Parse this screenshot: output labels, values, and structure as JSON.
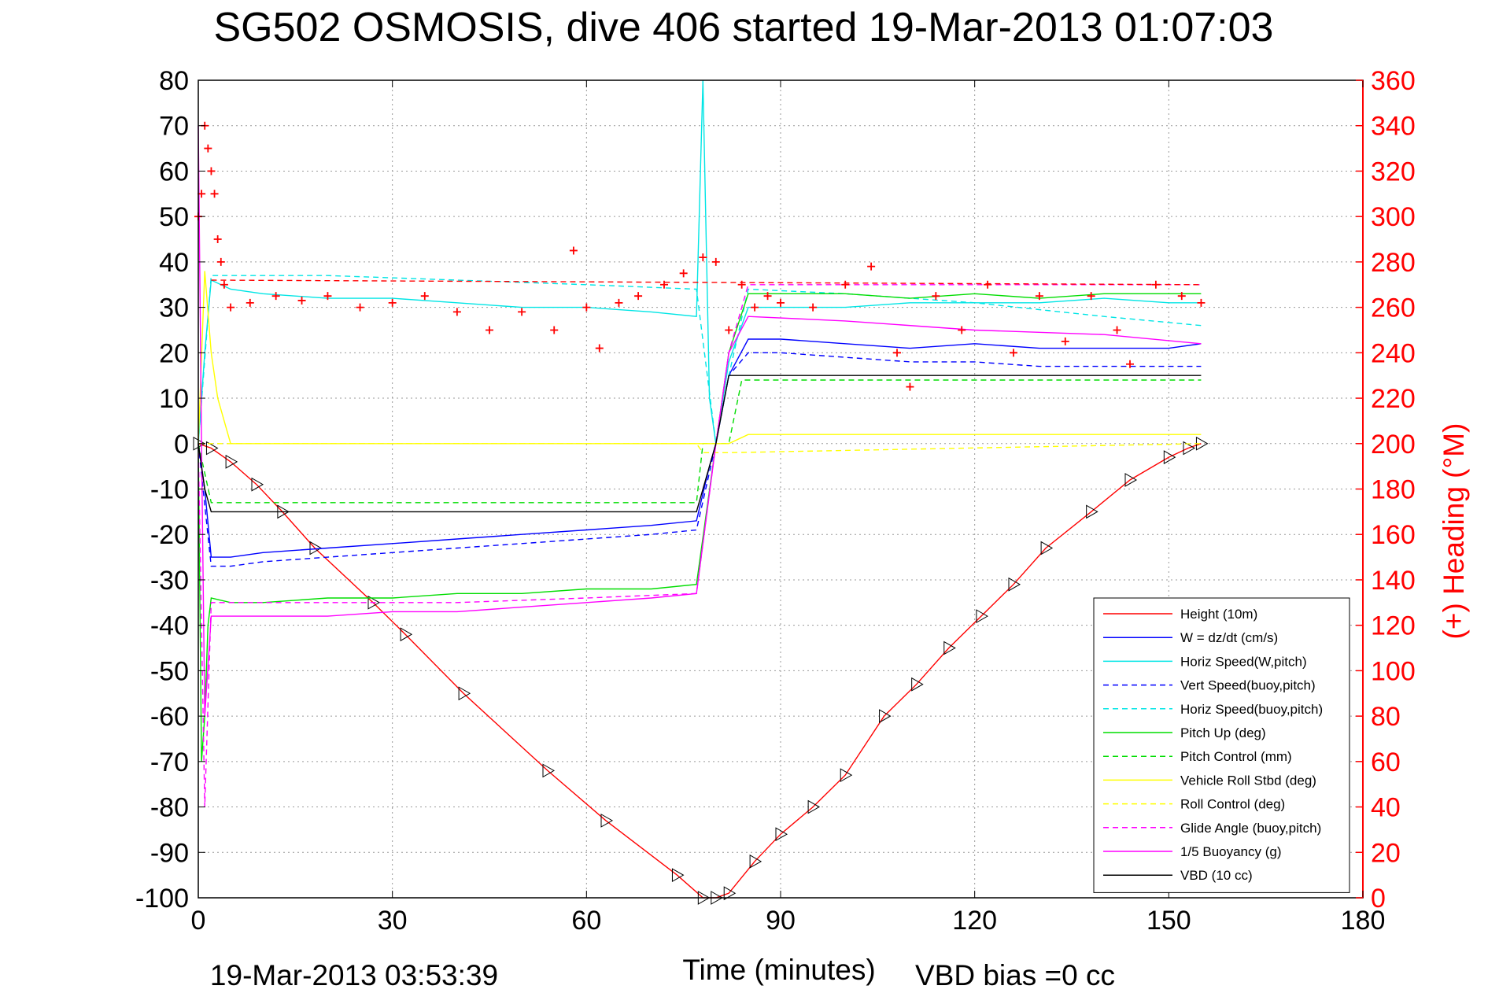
{
  "chart_data": {
    "type": "line",
    "title": "SG502 OSMOSIS, dive 406 started 19-Mar-2013 01:07:03",
    "xlabel": "Time (minutes)",
    "ylabel": "",
    "ylabel_right": "(+) Heading (°M)",
    "footer_left": "19-Mar-2013 03:53:39",
    "footer_right": "VBD bias =0 cc",
    "xlim": [
      0,
      180
    ],
    "ylim": [
      -100,
      80
    ],
    "ylim_right": [
      0,
      360
    ],
    "x_ticks": [
      "0",
      "30",
      "60",
      "90",
      "120",
      "150",
      "180"
    ],
    "y_ticks": [
      "80",
      "70",
      "60",
      "50",
      "40",
      "30",
      "20",
      "10",
      "0",
      "-10",
      "-20",
      "-30",
      "-40",
      "-50",
      "-60",
      "-70",
      "-80",
      "-90",
      "-100"
    ],
    "y_ticks_right": [
      "360",
      "340",
      "320",
      "300",
      "280",
      "260",
      "240",
      "220",
      "200",
      "180",
      "160",
      "140",
      "120",
      "100",
      "80",
      "60",
      "40",
      "20",
      "0"
    ],
    "grid": true,
    "legend_position": "bottom-right",
    "series": [
      {
        "name": "Height (10m)",
        "color": "#ff0000",
        "style": "solid",
        "marker": "triangle",
        "x": [
          0,
          2,
          5,
          9,
          13,
          18,
          27,
          32,
          41,
          54,
          63,
          74,
          78,
          80,
          82,
          86,
          90,
          95,
          100,
          106,
          111,
          116,
          121,
          126,
          131,
          138,
          144,
          150,
          153,
          155
        ],
        "y": [
          0,
          -1,
          -4,
          -9,
          -15,
          -23,
          -35,
          -42,
          -55,
          -72,
          -83,
          -95,
          -100,
          -100,
          -99,
          -92,
          -86,
          -80,
          -73,
          -60,
          -53,
          -45,
          -38,
          -31,
          -23,
          -15,
          -8,
          -3,
          -1,
          0
        ]
      },
      {
        "name": "W = dz/dt (cm/s)",
        "color": "#0000ff",
        "style": "solid",
        "x": [
          0,
          1,
          2,
          5,
          10,
          20,
          30,
          40,
          50,
          60,
          70,
          77,
          79,
          80,
          82,
          85,
          90,
          100,
          110,
          120,
          130,
          140,
          150,
          155
        ],
        "y": [
          0,
          -10,
          -25,
          -25,
          -24,
          -23,
          -22,
          -21,
          -20,
          -19,
          -18,
          -17,
          -5,
          0,
          15,
          23,
          23,
          22,
          21,
          22,
          21,
          21,
          21,
          22
        ]
      },
      {
        "name": "Horiz Speed(W,pitch)",
        "color": "#00e5e5",
        "style": "solid",
        "x": [
          0,
          1,
          2,
          5,
          10,
          20,
          30,
          40,
          50,
          60,
          70,
          77,
          78,
          79,
          80,
          82,
          85,
          90,
          100,
          110,
          120,
          130,
          140,
          150,
          155
        ],
        "y": [
          0,
          20,
          36,
          34,
          33,
          32,
          32,
          31,
          30,
          30,
          29,
          28,
          80,
          10,
          0,
          18,
          30,
          30,
          30,
          31,
          31,
          31,
          32,
          31,
          31
        ]
      },
      {
        "name": "Vert Speed(buoy,pitch)",
        "color": "#0000ff",
        "style": "dashed",
        "x": [
          0,
          2,
          5,
          10,
          20,
          30,
          40,
          50,
          60,
          70,
          77,
          80,
          82,
          85,
          90,
          100,
          110,
          120,
          130,
          140,
          150,
          155
        ],
        "y": [
          0,
          -27,
          -27,
          -26,
          -25,
          -24,
          -23,
          -22,
          -21,
          -20,
          -19,
          0,
          15,
          20,
          20,
          19,
          18,
          18,
          17,
          17,
          17,
          17
        ]
      },
      {
        "name": "Horiz Speed(buoy,pitch)",
        "color": "#00e5e5",
        "style": "dashed",
        "x": [
          0,
          2,
          5,
          20,
          40,
          60,
          77,
          80,
          82,
          85,
          100,
          120,
          140,
          155
        ],
        "y": [
          0,
          37,
          37,
          37,
          36,
          35,
          34,
          0,
          15,
          34,
          33,
          31,
          28,
          26
        ]
      },
      {
        "name": "Pitch Up (deg)",
        "color": "#00dd00",
        "style": "solid",
        "x": [
          0,
          0.5,
          1,
          1.5,
          2,
          5,
          10,
          20,
          30,
          40,
          50,
          60,
          70,
          77,
          80,
          82,
          85,
          90,
          100,
          110,
          120,
          130,
          140,
          150,
          155
        ],
        "y": [
          0,
          -70,
          -60,
          -40,
          -34,
          -35,
          -35,
          -34,
          -34,
          -33,
          -33,
          -32,
          -32,
          -31,
          0,
          20,
          33,
          33,
          33,
          32,
          33,
          32,
          33,
          33,
          33
        ]
      },
      {
        "name": "Pitch Control (mm)",
        "color": "#00dd00",
        "style": "dashed",
        "x": [
          0,
          2,
          77,
          78,
          82,
          84,
          155
        ],
        "y": [
          0,
          -13,
          -13,
          0,
          0,
          14,
          14
        ]
      },
      {
        "name": "Vehicle Roll Stbd (deg)",
        "color": "#ffff00",
        "style": "solid",
        "x": [
          0,
          1,
          2,
          3,
          5,
          10,
          20,
          30,
          40,
          50,
          60,
          70,
          77,
          80,
          82,
          85,
          90,
          100,
          110,
          120,
          130,
          140,
          150,
          155
        ],
        "y": [
          0,
          38,
          20,
          10,
          0,
          0,
          0,
          0,
          0,
          0,
          0,
          0,
          0,
          0,
          0,
          2,
          2,
          2,
          2,
          2,
          2,
          2,
          2,
          2
        ]
      },
      {
        "name": "Roll Control (deg)",
        "color": "#ffff00",
        "style": "dashed",
        "x": [
          0,
          2,
          77,
          78,
          82,
          155
        ],
        "y": [
          0,
          0,
          0,
          -2,
          -2,
          0
        ]
      },
      {
        "name": "Glide Angle (buoy,pitch)",
        "color": "#ff00ff",
        "style": "dashed",
        "x": [
          0,
          1,
          2,
          5,
          20,
          40,
          60,
          77,
          80,
          82,
          85,
          100,
          120,
          140,
          155
        ],
        "y": [
          0,
          -80,
          -35,
          -35,
          -35,
          -35,
          -34,
          -33,
          0,
          20,
          35,
          35,
          35,
          35,
          35
        ]
      },
      {
        "name": "1/5 Buoyancy (g)",
        "color": "#ff00ff",
        "style": "solid",
        "x": [
          0,
          0.5,
          1,
          2,
          10,
          20,
          30,
          40,
          50,
          60,
          70,
          77,
          80,
          82,
          85,
          100,
          120,
          140,
          155
        ],
        "y": [
          70,
          0,
          -60,
          -38,
          -38,
          -38,
          -37,
          -37,
          -36,
          -35,
          -34,
          -33,
          0,
          20,
          28,
          27,
          25,
          24,
          22
        ]
      },
      {
        "name": "VBD (10 cc)",
        "color": "#000000",
        "style": "solid",
        "x": [
          0,
          1,
          2,
          77,
          80,
          82,
          155
        ],
        "y": [
          0,
          -10,
          -15,
          -15,
          0,
          15,
          15
        ]
      },
      {
        "name": "(+) Heading",
        "color": "#ff0000",
        "style": "marker-plus",
        "axis": "right",
        "x": [
          0,
          0.5,
          1,
          1.5,
          2,
          2.5,
          3,
          3.5,
          4,
          5,
          8,
          12,
          16,
          20,
          25,
          30,
          35,
          40,
          45,
          50,
          55,
          58,
          60,
          62,
          65,
          68,
          72,
          75,
          78,
          80,
          82,
          84,
          86,
          88,
          90,
          95,
          100,
          104,
          108,
          110,
          114,
          118,
          122,
          126,
          130,
          134,
          138,
          142,
          144,
          148,
          152,
          155
        ],
        "y": [
          300,
          310,
          340,
          330,
          320,
          310,
          290,
          280,
          270,
          260,
          262,
          265,
          263,
          265,
          260,
          262,
          265,
          258,
          250,
          258,
          250,
          285,
          260,
          242,
          262,
          265,
          270,
          275,
          282,
          280,
          250,
          270,
          260,
          265,
          262,
          260,
          270,
          278,
          240,
          225,
          265,
          250,
          270,
          240,
          265,
          245,
          265,
          250,
          235,
          270,
          265,
          262
        ]
      },
      {
        "name": "",
        "color": "#ff0000",
        "style": "dashed",
        "axis": "right",
        "x": [
          2,
          155
        ],
        "y": [
          272,
          270
        ]
      }
    ]
  }
}
